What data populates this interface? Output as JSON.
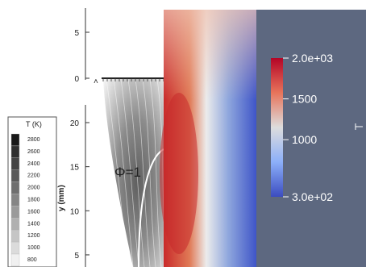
{
  "chart_data": [
    {
      "type": "heatmap",
      "title": "",
      "xlabel": "",
      "ylabel": "y (mm)",
      "colormap": "grayscale",
      "ticks_top": [
        {
          "label": "5",
          "value": 5
        },
        {
          "label": "0",
          "value": 0
        }
      ],
      "ticks_bottom": [
        {
          "label": "20",
          "value": 20
        },
        {
          "label": "15",
          "value": 15
        },
        {
          "label": "10",
          "value": 10
        },
        {
          "label": "5",
          "value": 5
        }
      ],
      "annotation": "Φ=1",
      "legend": {
        "title": "T (K)",
        "position": "left",
        "entries": [
          "2800",
          "2600",
          "2400",
          "2200",
          "2000",
          "1800",
          "1600",
          "1400",
          "1200",
          "1000",
          "800"
        ]
      }
    },
    {
      "type": "heatmap",
      "title": "",
      "colormap": "cool-to-warm",
      "background_color": "#5d6880",
      "colorbar": {
        "position": "right",
        "min": 300,
        "max": 2000,
        "tick_labels": [
          {
            "label": "2.0e+03",
            "value": 2000
          },
          {
            "label": "1500",
            "value": 1500
          },
          {
            "label": "1000",
            "value": 1000
          },
          {
            "label": "3.0e+02",
            "value": 300
          }
        ]
      },
      "colors": {
        "hot": "#c2282b",
        "mid": "#dcdcdc",
        "cold": "#3d53c7"
      }
    }
  ]
}
